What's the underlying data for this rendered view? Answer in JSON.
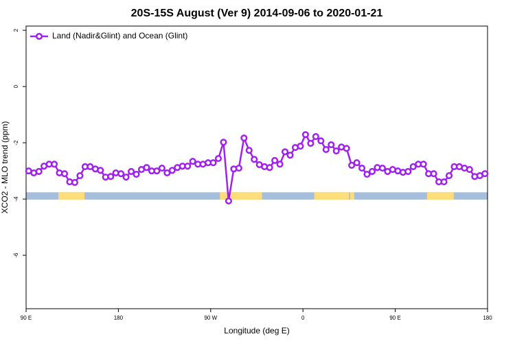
{
  "chart_data": {
    "type": "line",
    "title": "20S-15S August (Ver 9)   2014-09-06 to 2020-01-21",
    "x_label": "Longitude (deg E)",
    "y_label": "XCO2 - MLO trend (ppm)",
    "x": [
      92.5,
      97.5,
      102.5,
      107.5,
      112.5,
      117.5,
      122.5,
      127.5,
      132.5,
      137.5,
      142.5,
      147.5,
      152.5,
      157.5,
      162.5,
      167.5,
      172.5,
      177.5,
      182.5,
      187.5,
      192.5,
      197.5,
      202.5,
      207.5,
      212.5,
      217.5,
      222.5,
      227.5,
      232.5,
      237.5,
      242.5,
      247.5,
      252.5,
      257.5,
      262.5,
      267.5,
      272.5,
      277.5,
      282.5,
      287.5,
      292.5,
      297.5,
      302.5,
      307.5,
      312.5,
      317.5,
      322.5,
      327.5,
      332.5,
      337.5,
      342.5,
      347.5,
      352.5,
      357.5,
      362.5,
      367.5,
      372.5,
      377.5,
      382.5,
      387.5,
      392.5,
      397.5,
      402.5,
      407.5,
      412.5,
      417.5,
      422.5,
      427.5,
      432.5,
      437.5,
      442.5,
      447.5,
      452.5,
      457.5,
      462.5,
      467.5,
      472.5,
      477.5,
      482.5,
      487.5,
      492.5,
      497.5,
      502.5,
      507.5,
      512.5,
      517.5,
      522.5,
      527.5,
      532.5,
      537.5
    ],
    "series": [
      {
        "name": "Land (Nadir&Glint) and Ocean (Glint)",
        "color": "#a020f0",
        "values": [
          -3.0,
          -3.07,
          -3.02,
          -2.83,
          -2.76,
          -2.76,
          -3.07,
          -3.1,
          -3.39,
          -3.41,
          -3.17,
          -2.85,
          -2.85,
          -2.93,
          -2.98,
          -3.22,
          -3.2,
          -3.07,
          -3.1,
          -3.22,
          -3.02,
          -3.12,
          -2.95,
          -2.88,
          -3.0,
          -3.0,
          -2.9,
          -3.07,
          -2.98,
          -2.88,
          -2.83,
          -2.83,
          -2.66,
          -2.76,
          -2.76,
          -2.71,
          -2.71,
          -2.56,
          -1.98,
          -4.07,
          -2.93,
          -2.9,
          -1.83,
          -2.27,
          -2.59,
          -2.78,
          -2.85,
          -2.88,
          -2.63,
          -2.76,
          -2.32,
          -2.44,
          -2.17,
          -2.12,
          -1.71,
          -2.02,
          -1.78,
          -1.93,
          -2.24,
          -2.07,
          -2.29,
          -2.15,
          -2.2,
          -2.8,
          -2.71,
          -2.9,
          -3.12,
          -3.02,
          -2.88,
          -2.9,
          -3.02,
          -2.95,
          -3.0,
          -3.05,
          -3.02,
          -2.85,
          -2.76,
          -2.76,
          -3.1,
          -3.1,
          -3.39,
          -3.39,
          -3.17,
          -2.85,
          -2.85,
          -2.9,
          -2.95,
          -3.2,
          -3.17,
          -3.1
        ]
      }
    ],
    "surface_strip": {
      "y_range": [
        -4.02,
        -3.76
      ],
      "ocean_color": "#a6bddb",
      "land_color": "#fddc7a",
      "land": [
        [
          121.5,
          147
        ],
        [
          279,
          320
        ],
        [
          371,
          405
        ],
        [
          406,
          410
        ],
        [
          481,
          507
        ]
      ]
    },
    "xlim": [
      90,
      540
    ],
    "xticks": [
      {
        "value": 90,
        "label": "90 E"
      },
      180,
      {
        "value": 270,
        "label": "90 W"
      },
      {
        "value": 360,
        "label": "0"
      },
      {
        "value": 450,
        "label": "90 E"
      },
      {
        "value": 540,
        "label": "180"
      }
    ],
    "ylim": [
      -7.9,
      2.15
    ],
    "yticks": [
      2,
      0,
      -2,
      -4,
      -6
    ],
    "legend": "top-left"
  }
}
